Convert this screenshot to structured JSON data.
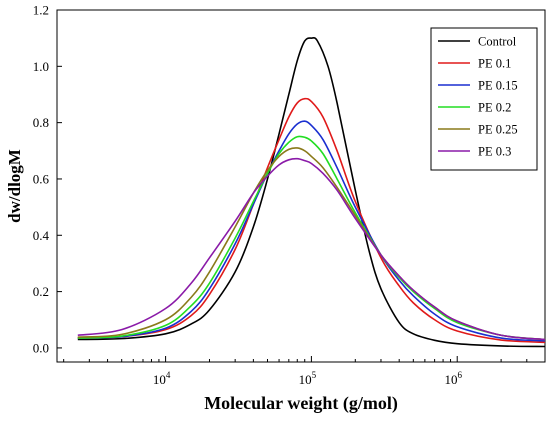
{
  "chart_data": {
    "type": "line",
    "xlabel": "Molecular weight (g/mol)",
    "ylabel": "dw/dlogM",
    "x_scale": "log",
    "xlim": [
      1800,
      4000000
    ],
    "ylim": [
      -0.05,
      1.2
    ],
    "y_ticks": [
      "0.0",
      "0.2",
      "0.4",
      "0.6",
      "0.8",
      "1.0",
      "1.2"
    ],
    "x_ticks": [
      {
        "value": 10000,
        "base": "10",
        "exp": "4"
      },
      {
        "value": 100000,
        "base": "10",
        "exp": "5"
      },
      {
        "value": 1000000,
        "base": "10",
        "exp": "6"
      }
    ],
    "grid": false,
    "legend_position": "top-right",
    "series": [
      {
        "name": "Control",
        "color": "#000000",
        "points": [
          [
            2500,
            0.03
          ],
          [
            5000,
            0.033
          ],
          [
            10000,
            0.05
          ],
          [
            15000,
            0.085
          ],
          [
            20000,
            0.135
          ],
          [
            30000,
            0.27
          ],
          [
            40000,
            0.43
          ],
          [
            50000,
            0.6
          ],
          [
            60000,
            0.76
          ],
          [
            70000,
            0.9
          ],
          [
            80000,
            1.02
          ],
          [
            90000,
            1.09
          ],
          [
            100000,
            1.1
          ],
          [
            110000,
            1.09
          ],
          [
            130000,
            1.0
          ],
          [
            150000,
            0.87
          ],
          [
            200000,
            0.56
          ],
          [
            250000,
            0.34
          ],
          [
            300000,
            0.21
          ],
          [
            400000,
            0.09
          ],
          [
            500000,
            0.05
          ],
          [
            700000,
            0.027
          ],
          [
            1000000,
            0.015
          ],
          [
            2000000,
            0.007
          ],
          [
            4000000,
            0.005
          ]
        ]
      },
      {
        "name": "PE 0.1",
        "color": "#e01a1a",
        "points": [
          [
            2500,
            0.035
          ],
          [
            5000,
            0.04
          ],
          [
            10000,
            0.065
          ],
          [
            15000,
            0.115
          ],
          [
            20000,
            0.19
          ],
          [
            30000,
            0.35
          ],
          [
            40000,
            0.51
          ],
          [
            50000,
            0.64
          ],
          [
            60000,
            0.74
          ],
          [
            70000,
            0.82
          ],
          [
            80000,
            0.87
          ],
          [
            90000,
            0.885
          ],
          [
            100000,
            0.875
          ],
          [
            120000,
            0.82
          ],
          [
            150000,
            0.7
          ],
          [
            200000,
            0.52
          ],
          [
            300000,
            0.32
          ],
          [
            400000,
            0.22
          ],
          [
            500000,
            0.16
          ],
          [
            700000,
            0.1
          ],
          [
            1000000,
            0.06
          ],
          [
            2000000,
            0.028
          ],
          [
            4000000,
            0.02
          ]
        ]
      },
      {
        "name": "PE 0.15",
        "color": "#1a2fd0",
        "points": [
          [
            2500,
            0.035
          ],
          [
            5000,
            0.04
          ],
          [
            10000,
            0.07
          ],
          [
            15000,
            0.13
          ],
          [
            20000,
            0.21
          ],
          [
            30000,
            0.37
          ],
          [
            40000,
            0.51
          ],
          [
            50000,
            0.62
          ],
          [
            60000,
            0.7
          ],
          [
            70000,
            0.76
          ],
          [
            80000,
            0.795
          ],
          [
            90000,
            0.805
          ],
          [
            100000,
            0.79
          ],
          [
            120000,
            0.74
          ],
          [
            150000,
            0.64
          ],
          [
            200000,
            0.5
          ],
          [
            300000,
            0.33
          ],
          [
            400000,
            0.24
          ],
          [
            500000,
            0.185
          ],
          [
            700000,
            0.12
          ],
          [
            1000000,
            0.075
          ],
          [
            2000000,
            0.035
          ],
          [
            4000000,
            0.025
          ]
        ]
      },
      {
        "name": "PE 0.2",
        "color": "#22dd22",
        "points": [
          [
            2500,
            0.035
          ],
          [
            5000,
            0.042
          ],
          [
            10000,
            0.08
          ],
          [
            15000,
            0.15
          ],
          [
            20000,
            0.23
          ],
          [
            30000,
            0.39
          ],
          [
            40000,
            0.52
          ],
          [
            50000,
            0.62
          ],
          [
            60000,
            0.69
          ],
          [
            70000,
            0.73
          ],
          [
            80000,
            0.75
          ],
          [
            90000,
            0.748
          ],
          [
            100000,
            0.735
          ],
          [
            120000,
            0.69
          ],
          [
            150000,
            0.6
          ],
          [
            200000,
            0.48
          ],
          [
            300000,
            0.33
          ],
          [
            400000,
            0.25
          ],
          [
            500000,
            0.2
          ],
          [
            700000,
            0.14
          ],
          [
            1000000,
            0.09
          ],
          [
            2000000,
            0.045
          ],
          [
            4000000,
            0.03
          ]
        ]
      },
      {
        "name": "PE 0.25",
        "color": "#8a7a1a",
        "points": [
          [
            2500,
            0.038
          ],
          [
            5000,
            0.048
          ],
          [
            10000,
            0.1
          ],
          [
            15000,
            0.18
          ],
          [
            20000,
            0.27
          ],
          [
            30000,
            0.43
          ],
          [
            40000,
            0.55
          ],
          [
            50000,
            0.63
          ],
          [
            60000,
            0.68
          ],
          [
            70000,
            0.705
          ],
          [
            80000,
            0.71
          ],
          [
            90000,
            0.7
          ],
          [
            100000,
            0.68
          ],
          [
            120000,
            0.64
          ],
          [
            150000,
            0.57
          ],
          [
            200000,
            0.47
          ],
          [
            300000,
            0.33
          ],
          [
            400000,
            0.255
          ],
          [
            500000,
            0.205
          ],
          [
            700000,
            0.145
          ],
          [
            1000000,
            0.095
          ],
          [
            2000000,
            0.045
          ],
          [
            4000000,
            0.03
          ]
        ]
      },
      {
        "name": "PE 0.3",
        "color": "#8a1aa8",
        "points": [
          [
            2500,
            0.045
          ],
          [
            5000,
            0.065
          ],
          [
            10000,
            0.14
          ],
          [
            15000,
            0.23
          ],
          [
            20000,
            0.32
          ],
          [
            30000,
            0.45
          ],
          [
            40000,
            0.55
          ],
          [
            50000,
            0.61
          ],
          [
            60000,
            0.65
          ],
          [
            70000,
            0.668
          ],
          [
            80000,
            0.672
          ],
          [
            90000,
            0.665
          ],
          [
            100000,
            0.655
          ],
          [
            120000,
            0.62
          ],
          [
            150000,
            0.56
          ],
          [
            200000,
            0.46
          ],
          [
            300000,
            0.33
          ],
          [
            400000,
            0.255
          ],
          [
            500000,
            0.205
          ],
          [
            700000,
            0.145
          ],
          [
            1000000,
            0.095
          ],
          [
            2000000,
            0.045
          ],
          [
            4000000,
            0.03
          ]
        ]
      }
    ]
  }
}
